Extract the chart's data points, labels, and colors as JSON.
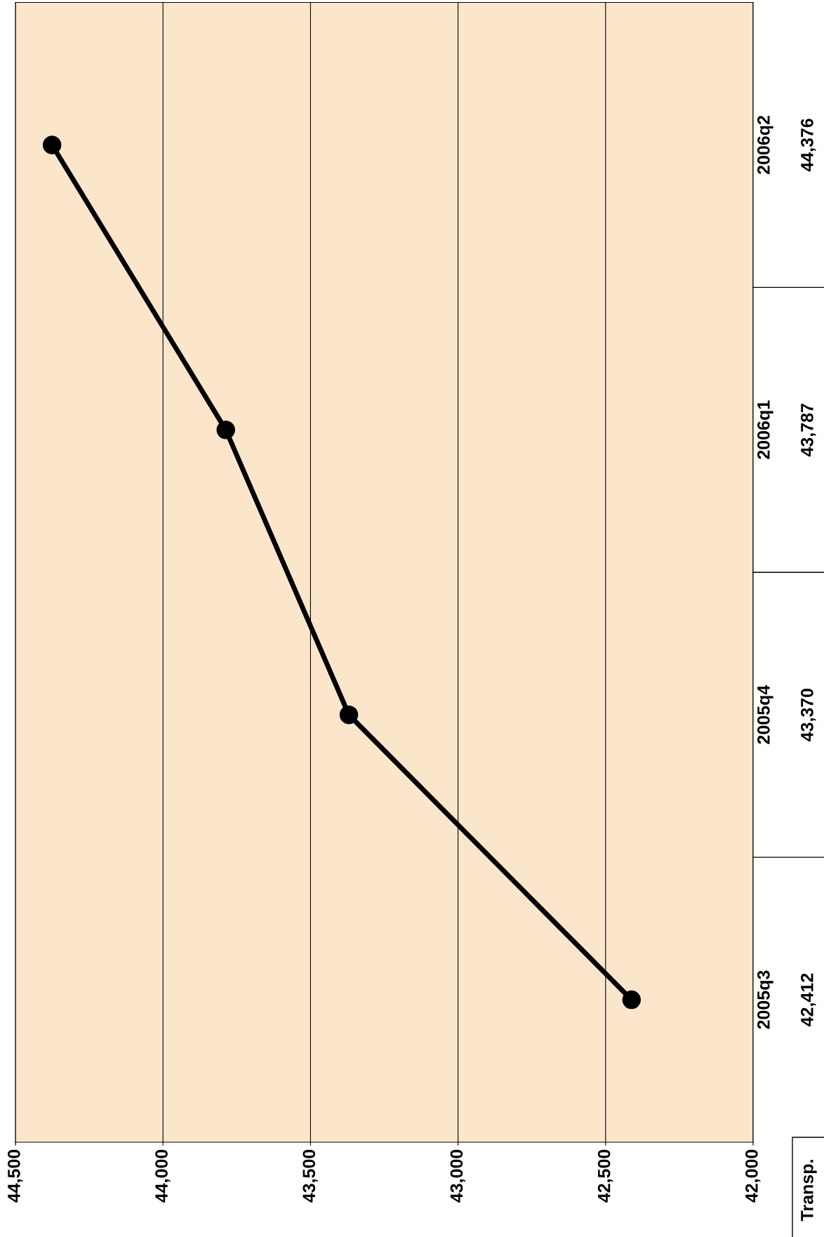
{
  "chart_data": {
    "type": "line",
    "orientation": "horizontal",
    "categories": [
      "2006q2",
      "2006q1",
      "2005q4",
      "2005q3"
    ],
    "series": [
      {
        "name": "Transp.",
        "color": "#000000",
        "values": [
          44376,
          43787,
          43370,
          42412
        ],
        "value_labels": [
          "44,376",
          "43,787",
          "43,370",
          "42,412"
        ]
      }
    ],
    "xlim": [
      44500,
      42000
    ],
    "xticks": [
      {
        "value": 44500,
        "label": "44,500"
      },
      {
        "value": 44000,
        "label": "44,000"
      },
      {
        "value": 43500,
        "label": "43,500"
      },
      {
        "value": 43000,
        "label": "43,000"
      },
      {
        "value": 42500,
        "label": "42,500"
      },
      {
        "value": 42000,
        "label": "42,000"
      }
    ],
    "grid": "x",
    "marker": "circle",
    "line_style": "solid",
    "legend": false
  }
}
